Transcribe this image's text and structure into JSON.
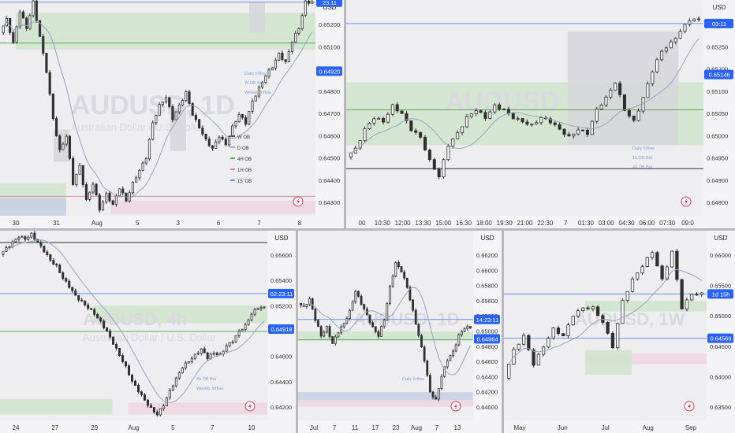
{
  "colors": {
    "background": "#eeeef1",
    "divider": "#b9b9bd",
    "candle": "#2f2f2f",
    "ma_line": "#9aa3b8",
    "price_line": "#6f8ee8",
    "price_tag": "#2962ff",
    "green_zone": "#cfe3cc",
    "green_line": "#5fa85f",
    "grey_zone": "#d6d6da",
    "pink_zone": "#eed5df",
    "pink_line": "#d68aa8",
    "blue_zone": "#c5cfe3",
    "watermark": "#d9d9de"
  },
  "chart_data": [
    {
      "type": "candlestick",
      "name": "panel-top-left",
      "currency": "USD",
      "watermark": "AUDUSD, 1D",
      "watermark_sub": "Australian Dollar / U.S. Dollar",
      "x_ticks": [
        "30",
        "31",
        "Aug",
        "5",
        "3",
        "6",
        "7",
        "8"
      ],
      "y_ticks": [
        "0.65200",
        "0.65100",
        "0.65000",
        "0.64800",
        "0.64700",
        "0.64600",
        "0.64500",
        "0.64400",
        "0.64300"
      ],
      "ylim": [
        0.6425,
        0.6525
      ],
      "price_tags": [
        "23:11",
        "0.64920"
      ],
      "legend": [
        {
          "label": "W OB",
          "color": "#555555"
        },
        {
          "label": "D OB",
          "color": "#aaaaaa"
        },
        {
          "label": "4H OB",
          "color": "#5fa85f"
        },
        {
          "label": "1H OB",
          "color": "#d68aa8"
        },
        {
          "label": "15' OB",
          "color": "#6f8ee8"
        }
      ],
      "level_labels": [
        "Daily Inflow",
        "W OB Bal",
        "Weekly Inflow"
      ],
      "path_y": [
        0.651,
        0.6516,
        0.6505,
        0.652,
        0.6512,
        0.6524,
        0.6508,
        0.6492,
        0.647,
        0.6455,
        0.6462,
        0.644,
        0.6448,
        0.6432,
        0.644,
        0.6428,
        0.6435,
        0.643,
        0.6438,
        0.6432,
        0.644,
        0.6446,
        0.6452,
        0.6468,
        0.6476,
        0.648,
        0.647,
        0.6476,
        0.6482,
        0.6472,
        0.6466,
        0.646,
        0.6456,
        0.6462,
        0.6458,
        0.6466,
        0.6472,
        0.6468,
        0.6478,
        0.6484,
        0.649,
        0.6494,
        0.65,
        0.6496,
        0.6506,
        0.6512,
        0.6524
      ]
    },
    {
      "type": "candlestick",
      "name": "panel-top-right",
      "currency": "USD",
      "watermark": "AUDUSD",
      "watermark_sub": "",
      "x_ticks": [
        "00",
        "10:30",
        "12:00",
        "13:30",
        "15:00",
        "16:30",
        "18:00",
        "19:30",
        "21:00",
        "22:30",
        "7",
        "01:30",
        "03:00",
        "04:30",
        "06:00",
        "07:30",
        "09:0"
      ],
      "y_ticks": [
        "0.65300",
        "0.65250",
        "0.65200",
        "0.65100",
        "0.65050",
        "0.65000",
        "0.64950",
        "0.64900",
        "0.64800"
      ],
      "ylim": [
        0.6478,
        0.6533
      ],
      "price_tags": [
        "03:11",
        "0.65146"
      ],
      "level_labels": [
        "Daily Inflow",
        "1h OB Bal",
        "4h OB Bal"
      ],
      "path_y": [
        0.6493,
        0.6495,
        0.65,
        0.6503,
        0.6502,
        0.6506,
        0.6504,
        0.65,
        0.6498,
        0.6492,
        0.6488,
        0.6496,
        0.6499,
        0.6503,
        0.6505,
        0.6503,
        0.6506,
        0.6505,
        0.6503,
        0.6502,
        0.6501,
        0.6503,
        0.6502,
        0.65,
        0.6498,
        0.65,
        0.6499,
        0.6505,
        0.6508,
        0.6512,
        0.6505,
        0.6502,
        0.6508,
        0.6515,
        0.652,
        0.6522,
        0.6525,
        0.6528
      ]
    },
    {
      "type": "candlestick",
      "name": "panel-bottom-left",
      "currency": "USD",
      "watermark": "AUDUSD, 4h",
      "watermark_sub": "Australian Dollar / U.S. Dollar",
      "x_ticks": [
        "24",
        "27",
        "29",
        "Aug",
        "5",
        "7",
        "10"
      ],
      "y_ticks": [
        "0.65600",
        "0.65400",
        "0.65200",
        "0.65000",
        "0.64600",
        "0.64400",
        "0.64200"
      ],
      "ylim": [
        0.6415,
        0.6575
      ],
      "price_tags": [
        "02:23:11",
        "0.64918"
      ],
      "level_labels": [
        "4h OB Bal",
        "Weekly Inflow"
      ],
      "path_y": [
        0.6555,
        0.656,
        0.6565,
        0.657,
        0.6568,
        0.6572,
        0.6565,
        0.6558,
        0.655,
        0.6545,
        0.6535,
        0.6528,
        0.652,
        0.6515,
        0.651,
        0.6505,
        0.6498,
        0.649,
        0.648,
        0.647,
        0.646,
        0.6448,
        0.644,
        0.6432,
        0.6425,
        0.642,
        0.6428,
        0.644,
        0.645,
        0.646,
        0.6465,
        0.647,
        0.6475,
        0.6468,
        0.6472,
        0.647,
        0.6478,
        0.6482,
        0.649,
        0.6495,
        0.6505,
        0.651
      ]
    },
    {
      "type": "candlestick",
      "name": "panel-bottom-middle",
      "currency": "USD",
      "watermark": "AUDUSD, 1D",
      "watermark_sub": "",
      "x_ticks": [
        "Jul",
        "7",
        "11",
        "17",
        "23",
        "Aug",
        "7",
        "13"
      ],
      "y_ticks": [
        "0.66200",
        "0.66000",
        "0.65800",
        "0.65600",
        "0.65200",
        "0.65000",
        "0.64800",
        "0.64600",
        "0.64400",
        "0.64200",
        "0.64000"
      ],
      "ylim": [
        0.6395,
        0.663
      ],
      "price_tags": [
        "14:23:11",
        "0.64964"
      ],
      "level_labels": [
        "Daily Inflow"
      ],
      "path_y": [
        0.654,
        0.6535,
        0.6545,
        0.652,
        0.65,
        0.651,
        0.649,
        0.6505,
        0.6515,
        0.653,
        0.6555,
        0.654,
        0.6525,
        0.651,
        0.65,
        0.652,
        0.656,
        0.659,
        0.658,
        0.656,
        0.653,
        0.65,
        0.647,
        0.643,
        0.642,
        0.645,
        0.647,
        0.648,
        0.65,
        0.651
      ]
    },
    {
      "type": "candlestick",
      "name": "panel-bottom-right",
      "currency": "USD",
      "watermark": "AUDUSD, 1W",
      "watermark_sub": "",
      "x_ticks": [
        "May",
        "Jun",
        "Jul",
        "Aug",
        "Sep"
      ],
      "y_ticks": [
        "0.66000",
        "0.65500",
        "0.65000",
        "0.64500",
        "0.64000",
        "0.63500"
      ],
      "ylim": [
        0.634,
        0.661
      ],
      "price_tags": [
        "1d 15h",
        "0.64569"
      ],
      "level_labels": [],
      "path_y": [
        0.64,
        0.644,
        0.646,
        0.642,
        0.6445,
        0.647,
        0.646,
        0.649,
        0.65,
        0.65,
        0.648,
        0.6445,
        0.651,
        0.654,
        0.656,
        0.658,
        0.654,
        0.658,
        0.65,
        0.652
      ]
    }
  ]
}
